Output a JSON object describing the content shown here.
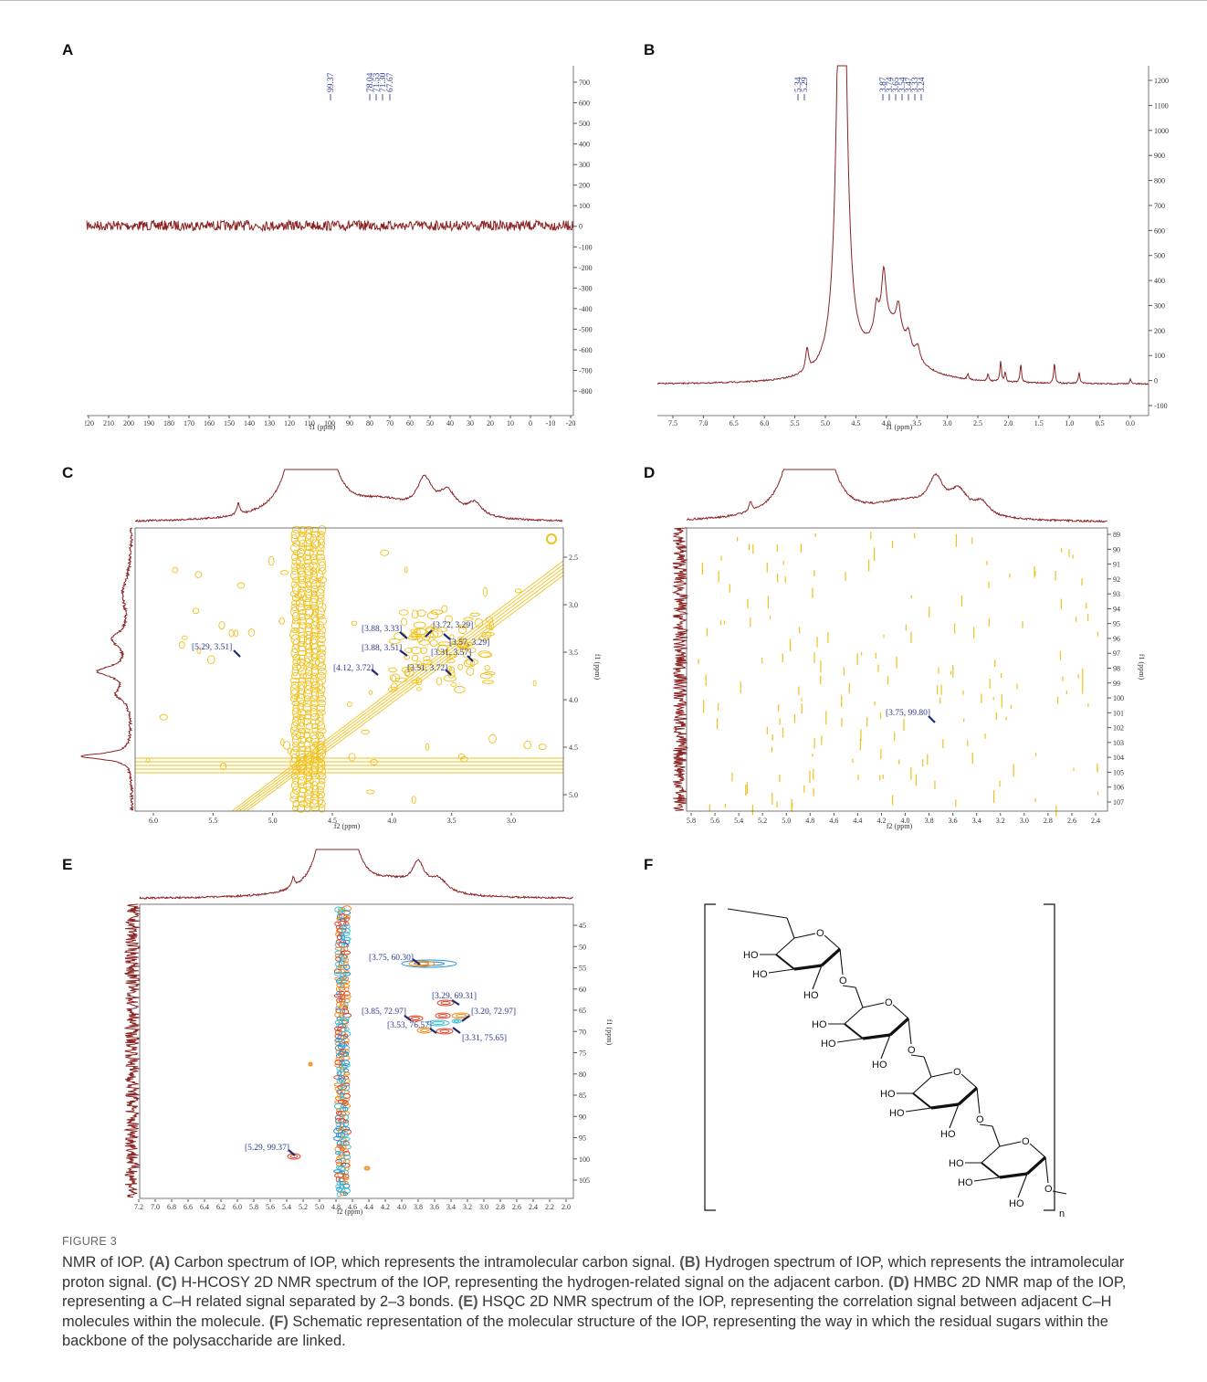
{
  "spectra": [
    {
      "label": "A",
      "x_axis_label": "f1 (ppm)",
      "x_ticks": [
        "220",
        "210",
        "200",
        "190",
        "180",
        "170",
        "160",
        "150",
        "140",
        "130",
        "120",
        "110",
        "100",
        "90",
        "80",
        "70",
        "60",
        "50",
        "40",
        "30",
        "20",
        "10",
        "0",
        "-10",
        "-20"
      ],
      "y_ticks": [
        "700",
        "600",
        "500",
        "400",
        "300",
        "200",
        "100",
        "0",
        "-100",
        "-200",
        "-300",
        "-400",
        "-500",
        "-600",
        "-700",
        "-800"
      ],
      "peak_labels": [
        "99.37",
        "78.04",
        "71.53",
        "71.30",
        "67.67"
      ]
    },
    {
      "label": "B",
      "x_axis_label": "f1 (ppm)",
      "x_ticks": [
        "7.5",
        "7.0",
        "6.5",
        "6.0",
        "5.5",
        "5.0",
        "4.5",
        "4.0",
        "3.5",
        "3.0",
        "2.5",
        "2.0",
        "1.5",
        "1.0",
        "0.5",
        "0.0"
      ],
      "y_ticks": [
        "1200",
        "1100",
        "1000",
        "900",
        "800",
        "700",
        "600",
        "500",
        "400",
        "300",
        "200",
        "100",
        "0",
        "-100"
      ],
      "peak_labels": [
        "5.34",
        "5.29",
        "3.87",
        "3.74",
        "3.65",
        "3.54",
        "3.47",
        "3.33",
        "3.24"
      ]
    },
    {
      "label": "C",
      "x_axis_label": "f2 (ppm)",
      "y_axis_label": "f1 (ppm)",
      "x_ticks": [
        "6.0",
        "5.5",
        "5.0",
        "4.5",
        "4.0",
        "3.5",
        "3.0"
      ],
      "y_ticks": [
        "2.5",
        "3.0",
        "3.5",
        "4.0",
        "4.5",
        "5.0"
      ],
      "peak_labels": [
        "[5.29, 3.51]",
        "[3.88, 3.33]",
        "[3.72, 3.29]",
        "[3.88, 3.51]",
        "[3.57, 3.29]",
        "[3.31, 3.57]",
        "[4.12, 3.72]",
        "[3.51, 3.72]"
      ]
    },
    {
      "label": "D",
      "x_axis_label": "f2 (ppm)",
      "y_axis_label": "f1 (ppm)",
      "x_ticks": [
        "5.8",
        "5.6",
        "5.4",
        "5.2",
        "5.0",
        "4.8",
        "4.6",
        "4.4",
        "4.2",
        "4.0",
        "3.8",
        "3.6",
        "3.4",
        "3.2",
        "3.0",
        "2.8",
        "2.6",
        "2.4"
      ],
      "y_ticks": [
        "89",
        "90",
        "91",
        "92",
        "93",
        "94",
        "95",
        "96",
        "97",
        "98",
        "99",
        "100",
        "101",
        "102",
        "103",
        "104",
        "105",
        "106",
        "107"
      ],
      "peak_labels": [
        "[3.75, 99.80]"
      ]
    },
    {
      "label": "E",
      "x_axis_label": "f2 (ppm)",
      "y_axis_label": "f1 (ppm)",
      "x_ticks": [
        "7.2",
        "7.0",
        "6.8",
        "6.6",
        "6.4",
        "6.2",
        "6.0",
        "5.8",
        "5.6",
        "5.4",
        "5.2",
        "5.0",
        "4.8",
        "4.6",
        "4.4",
        "4.2",
        "4.0",
        "3.8",
        "3.6",
        "3.4",
        "3.2",
        "3.0",
        "2.8",
        "2.6",
        "2.4",
        "2.2",
        "2.0"
      ],
      "y_ticks": [
        "45",
        "50",
        "55",
        "60",
        "65",
        "70",
        "75",
        "80",
        "85",
        "90",
        "95",
        "100",
        "105"
      ],
      "peak_labels": [
        "[3.75, 60.30]",
        "[3.29, 69.31]",
        "[3.85, 72.97]",
        "[3.20, 72.97]",
        "[3.53, 76.57]",
        "[3.31, 75.65]",
        "[5.29, 99.37]"
      ]
    }
  ],
  "structure": {
    "label": "F",
    "repeat": "n",
    "residues": [
      {
        "labels": [
          "HO",
          "HO",
          "HO",
          "O",
          "O"
        ]
      },
      {
        "labels": [
          "HO",
          "HO",
          "HO",
          "O",
          "O"
        ]
      },
      {
        "labels": [
          "HO",
          "HO",
          "HO",
          "O",
          "O"
        ]
      },
      {
        "labels": [
          "HO",
          "HO",
          "HO",
          "O",
          "O"
        ]
      }
    ]
  },
  "caption": {
    "figure": "FIGURE 3",
    "lead": "NMR of IOP.",
    "parts": [
      {
        "label": "(A)",
        "text": "Carbon spectrum of IOP, which represents the intramolecular carbon signal."
      },
      {
        "label": "(B)",
        "text": "Hydrogen spectrum of IOP, which represents the intramolecular proton signal."
      },
      {
        "label": "(C)",
        "text": "H-HCOSY 2D NMR spectrum of the IOP, representing the hydrogen-related signal on the adjacent carbon."
      },
      {
        "label": "(D)",
        "text": "HMBC 2D NMR map of the IOP, representing a C–H related signal separated by 2–3 bonds."
      },
      {
        "label": "(E)",
        "text": "HSQC 2D NMR spectrum of the IOP, representing the correlation signal between adjacent C–H molecules within the molecule."
      },
      {
        "label": "(F)",
        "text": "Schematic representation of the molecular structure of the IOP, representing the way in which the residual sugars within the backbone of the polysaccharide are linked."
      }
    ]
  }
}
